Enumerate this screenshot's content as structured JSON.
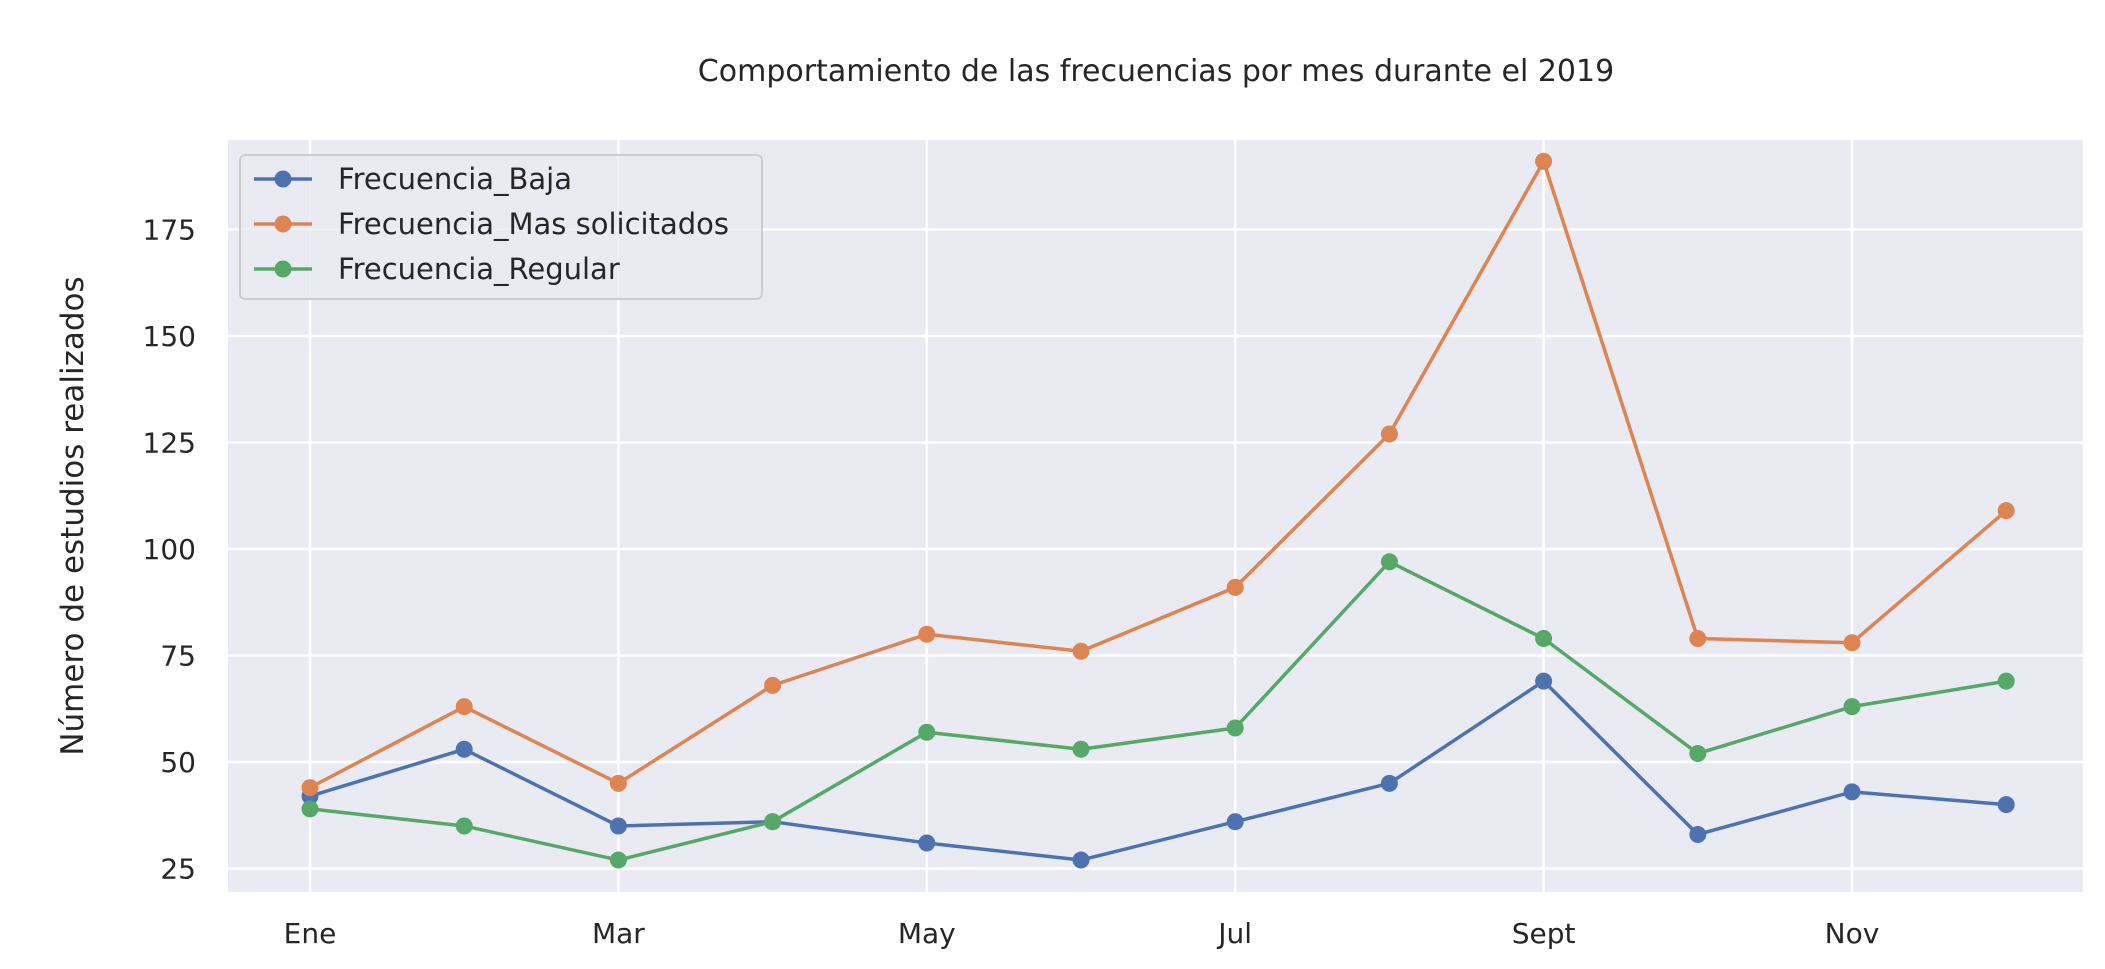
{
  "chart_data": {
    "type": "line",
    "title": "Comportamiento de las frecuencias por mes durante el 2019",
    "xlabel": "",
    "ylabel": "Número de estudios realizados",
    "categories": [
      "Ene",
      "Feb",
      "Mar",
      "Abr",
      "May",
      "Jun",
      "Jul",
      "Ago",
      "Sept",
      "Oct",
      "Nov",
      "Dic"
    ],
    "x_tick_labels": [
      "Ene",
      "",
      "Mar",
      "",
      "May",
      "",
      "Jul",
      "",
      "Sept",
      "",
      "Nov",
      ""
    ],
    "y_ticks": [
      25,
      50,
      75,
      100,
      125,
      150,
      175
    ],
    "ylim": [
      19.5,
      196
    ],
    "grid": true,
    "legend_position": "top-left",
    "series": [
      {
        "name": "Frecuencia_Baja",
        "color": "#4c72b0",
        "values": [
          42,
          53,
          35,
          36,
          31,
          27,
          36,
          45,
          69,
          33,
          43,
          40
        ]
      },
      {
        "name": "Frecuencia_Mas solicitados",
        "color": "#dd8452",
        "values": [
          44,
          63,
          45,
          68,
          80,
          76,
          91,
          127,
          191,
          79,
          78,
          109
        ]
      },
      {
        "name": "Frecuencia_Regular",
        "color": "#55a868",
        "values": [
          39,
          35,
          27,
          36,
          57,
          53,
          58,
          97,
          79,
          52,
          63,
          69
        ]
      }
    ]
  }
}
